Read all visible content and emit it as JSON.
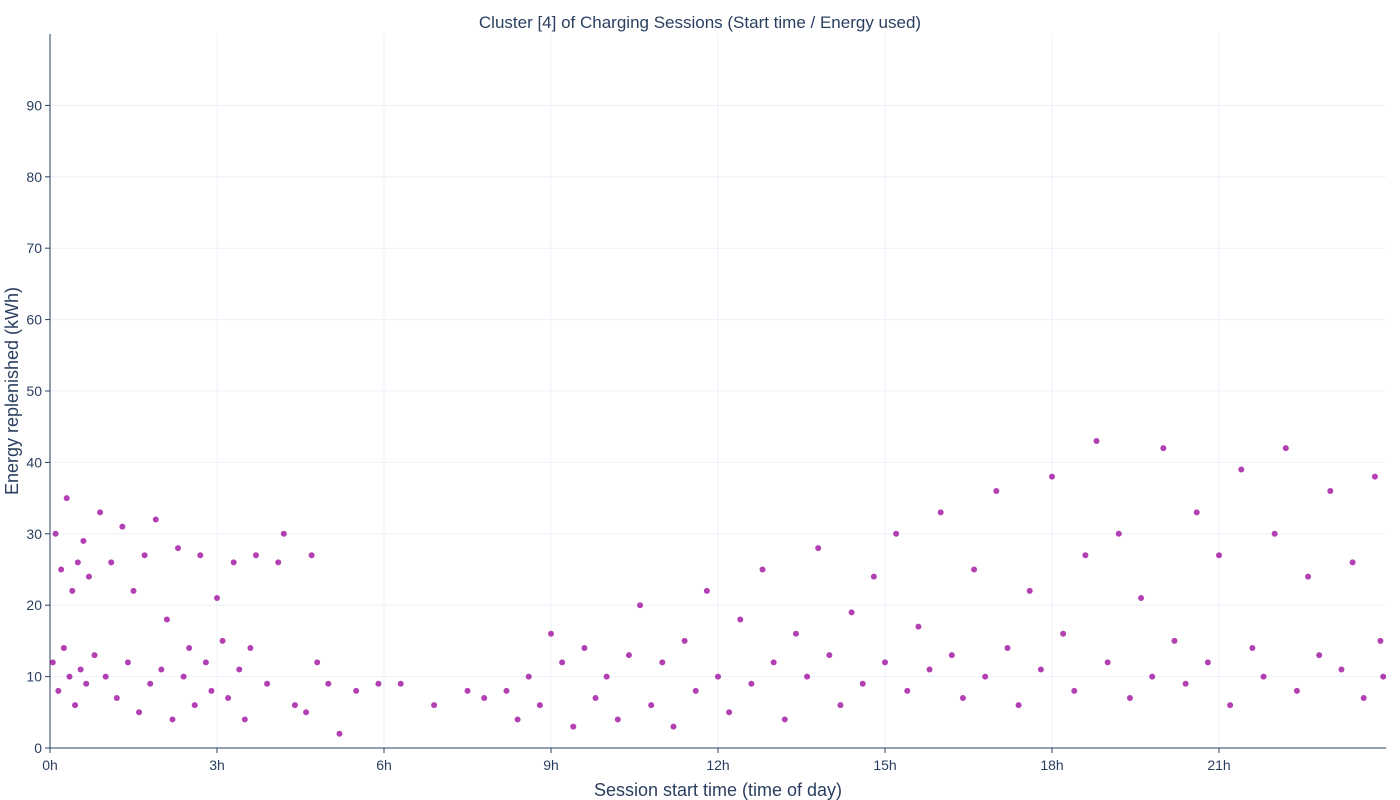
{
  "chart_data": {
    "type": "scatter",
    "title": "Cluster [4] of Charging Sessions (Start time / Energy used)",
    "xlabel": "Session start time (time of day)",
    "ylabel": "Energy replenished (kWh)",
    "x_unit": "hours since midnight",
    "xlim": [
      0,
      24
    ],
    "ylim": [
      0,
      100
    ],
    "x_ticks": [
      {
        "value": 0,
        "label": "0h"
      },
      {
        "value": 3,
        "label": "3h"
      },
      {
        "value": 6,
        "label": "6h"
      },
      {
        "value": 9,
        "label": "9h"
      },
      {
        "value": 12,
        "label": "12h"
      },
      {
        "value": 15,
        "label": "15h"
      },
      {
        "value": 18,
        "label": "18h"
      },
      {
        "value": 21,
        "label": "21h"
      }
    ],
    "y_ticks": [
      {
        "value": 0,
        "label": "0"
      },
      {
        "value": 10,
        "label": "10"
      },
      {
        "value": 20,
        "label": "20"
      },
      {
        "value": 30,
        "label": "30"
      },
      {
        "value": 40,
        "label": "40"
      },
      {
        "value": 50,
        "label": "50"
      },
      {
        "value": 60,
        "label": "60"
      },
      {
        "value": 70,
        "label": "70"
      },
      {
        "value": 80,
        "label": "80"
      },
      {
        "value": 90,
        "label": "90"
      }
    ],
    "grid": true,
    "legend": "none",
    "colors": {
      "marker": "#990099",
      "grid": "#ebf0f8",
      "axis": "#2a3f5f",
      "text": "#2a3f5f"
    },
    "series": [
      {
        "points": [
          [
            0.05,
            12
          ],
          [
            0.1,
            30
          ],
          [
            0.15,
            8
          ],
          [
            0.2,
            25
          ],
          [
            0.25,
            14
          ],
          [
            0.3,
            35
          ],
          [
            0.35,
            10
          ],
          [
            0.4,
            22
          ],
          [
            0.45,
            6
          ],
          [
            0.5,
            26
          ],
          [
            0.55,
            11
          ],
          [
            0.6,
            29
          ],
          [
            0.65,
            9
          ],
          [
            0.7,
            24
          ],
          [
            0.8,
            13
          ],
          [
            0.9,
            33
          ],
          [
            1.0,
            10
          ],
          [
            1.1,
            26
          ],
          [
            1.2,
            7
          ],
          [
            1.3,
            31
          ],
          [
            1.4,
            12
          ],
          [
            1.5,
            22
          ],
          [
            1.6,
            5
          ],
          [
            1.7,
            27
          ],
          [
            1.8,
            9
          ],
          [
            1.9,
            32
          ],
          [
            2.0,
            11
          ],
          [
            2.1,
            18
          ],
          [
            2.2,
            4
          ],
          [
            2.3,
            28
          ],
          [
            2.4,
            10
          ],
          [
            2.5,
            14
          ],
          [
            2.6,
            6
          ],
          [
            2.7,
            27
          ],
          [
            2.8,
            12
          ],
          [
            2.9,
            8
          ],
          [
            3.0,
            21
          ],
          [
            3.1,
            15
          ],
          [
            3.2,
            7
          ],
          [
            3.3,
            26
          ],
          [
            3.4,
            11
          ],
          [
            3.5,
            4
          ],
          [
            3.6,
            14
          ],
          [
            3.7,
            27
          ],
          [
            3.9,
            9
          ],
          [
            4.1,
            26
          ],
          [
            4.2,
            30
          ],
          [
            4.4,
            6
          ],
          [
            4.6,
            5
          ],
          [
            4.7,
            27
          ],
          [
            4.8,
            12
          ],
          [
            5.0,
            9
          ],
          [
            5.2,
            2
          ],
          [
            5.5,
            8
          ],
          [
            5.9,
            9
          ],
          [
            6.3,
            9
          ],
          [
            6.9,
            6
          ],
          [
            7.5,
            8
          ],
          [
            7.8,
            7
          ],
          [
            8.2,
            8
          ],
          [
            8.4,
            4
          ],
          [
            8.6,
            10
          ],
          [
            8.8,
            6
          ],
          [
            9.0,
            16
          ],
          [
            9.2,
            12
          ],
          [
            9.4,
            3
          ],
          [
            9.6,
            14
          ],
          [
            9.8,
            7
          ],
          [
            10.0,
            10
          ],
          [
            10.2,
            4
          ],
          [
            10.4,
            13
          ],
          [
            10.6,
            20
          ],
          [
            10.8,
            6
          ],
          [
            11.0,
            12
          ],
          [
            11.2,
            3
          ],
          [
            11.4,
            15
          ],
          [
            11.6,
            8
          ],
          [
            11.8,
            22
          ],
          [
            12.0,
            10
          ],
          [
            12.2,
            5
          ],
          [
            12.4,
            18
          ],
          [
            12.6,
            9
          ],
          [
            12.8,
            25
          ],
          [
            13.0,
            12
          ],
          [
            13.2,
            4
          ],
          [
            13.4,
            16
          ],
          [
            13.6,
            10
          ],
          [
            13.8,
            28
          ],
          [
            14.0,
            13
          ],
          [
            14.2,
            6
          ],
          [
            14.4,
            19
          ],
          [
            14.6,
            9
          ],
          [
            14.8,
            24
          ],
          [
            15.0,
            12
          ],
          [
            15.2,
            30
          ],
          [
            15.4,
            8
          ],
          [
            15.6,
            17
          ],
          [
            15.8,
            11
          ],
          [
            16.0,
            33
          ],
          [
            16.2,
            13
          ],
          [
            16.4,
            7
          ],
          [
            16.6,
            25
          ],
          [
            16.8,
            10
          ],
          [
            17.0,
            36
          ],
          [
            17.2,
            14
          ],
          [
            17.4,
            6
          ],
          [
            17.6,
            22
          ],
          [
            17.8,
            11
          ],
          [
            18.0,
            38
          ],
          [
            18.2,
            16
          ],
          [
            18.4,
            8
          ],
          [
            18.6,
            27
          ],
          [
            18.8,
            43
          ],
          [
            19.0,
            12
          ],
          [
            19.2,
            30
          ],
          [
            19.4,
            7
          ],
          [
            19.6,
            21
          ],
          [
            19.8,
            10
          ],
          [
            20.0,
            42
          ],
          [
            20.2,
            15
          ],
          [
            20.4,
            9
          ],
          [
            20.6,
            33
          ],
          [
            20.8,
            12
          ],
          [
            21.0,
            27
          ],
          [
            21.2,
            6
          ],
          [
            21.4,
            39
          ],
          [
            21.6,
            14
          ],
          [
            21.8,
            10
          ],
          [
            22.0,
            30
          ],
          [
            22.2,
            42
          ],
          [
            22.4,
            8
          ],
          [
            22.6,
            24
          ],
          [
            22.8,
            13
          ],
          [
            23.0,
            36
          ],
          [
            23.2,
            11
          ],
          [
            23.4,
            26
          ],
          [
            23.6,
            7
          ],
          [
            23.8,
            38
          ],
          [
            23.9,
            15
          ],
          [
            23.95,
            10
          ]
        ]
      }
    ]
  }
}
